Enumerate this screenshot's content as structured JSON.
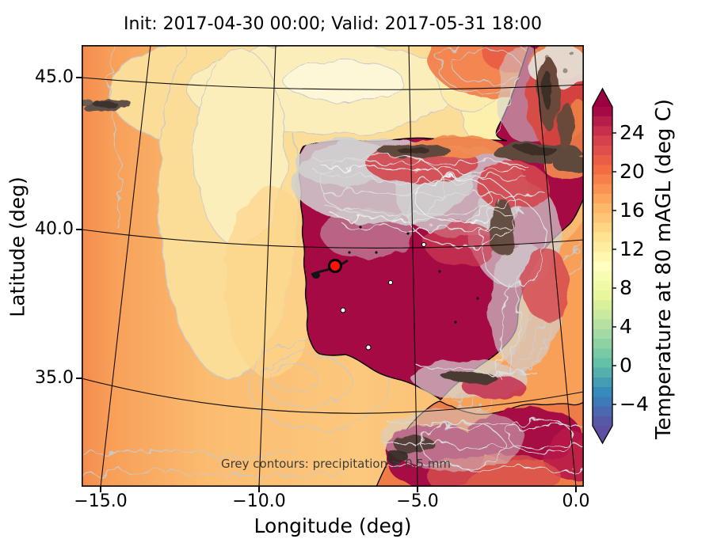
{
  "figure": {
    "title": "Init: 2017-04-30 00:00; Valid: 2017-05-31 18:00",
    "xlabel": "Longitude (deg)",
    "ylabel": "Latitude (deg)",
    "annotation": "Grey contours: precipitation ≥ 0.5 mm"
  },
  "axes": {
    "x_ticks": [
      "−15.0",
      "−10.0",
      "−5.0",
      "0.0"
    ],
    "y_ticks": [
      "45.0",
      "40.0",
      "35.0"
    ]
  },
  "colorbar": {
    "label": "Temperature at 80 mAGL (deg C)",
    "ticks": [
      "24",
      "20",
      "16",
      "12",
      "8",
      "4",
      "0",
      "−4"
    ],
    "range_top": 27,
    "range_bottom": -6,
    "band_step": 1,
    "stops_bottom_to_top": [
      "#5e4fa2",
      "#3288bd",
      "#66c2a5",
      "#abdda4",
      "#e6f598",
      "#ffffbf",
      "#fee08b",
      "#fdae61",
      "#f46d43",
      "#d53e4f",
      "#9e0142"
    ]
  },
  "colors": {
    "hot_land": "#a60a45",
    "ocean_orange": "#f9b267",
    "ocean_pale": "#fcefc0",
    "precip_grey": "#d2d2d2",
    "marker_red": "#fb1403",
    "annotation_grey": "#3d3d3d"
  },
  "marker": {
    "lon": -7.6,
    "lat": 38.9,
    "shape": "circle",
    "color": "#fb1403"
  },
  "chart_data": {
    "type": "heatmap",
    "subtype": "filled-contour-map",
    "title": "Init: 2017-04-30 00:00; Valid: 2017-05-31 18:00",
    "xlabel": "Longitude (deg)",
    "ylabel": "Latitude (deg)",
    "x_ticks": [
      -15.0,
      -10.0,
      -5.0,
      0.0
    ],
    "y_ticks": [
      45.0,
      40.0,
      35.0
    ],
    "xlim": [
      -15.6,
      0.3
    ],
    "ylim": [
      31.5,
      46.3
    ],
    "grid": true,
    "colorbar": {
      "label": "Temperature at 80 mAGL (deg C)",
      "units": "deg C",
      "ticks": [
        24,
        20,
        16,
        12,
        8,
        4,
        0,
        -4
      ],
      "range": [
        -6,
        27
      ],
      "colormap": "Spectral reversed (purple-blue-green-yellow-orange-red)",
      "extend": "both"
    },
    "overlays": [
      "Temperature >26 C (dark magenta) over interior Iberia, SE Spain coastally mottled, and inland North Africa",
      "Atlantic ocean 14-18 C (orange) with 10-13 C pale-yellow pools NW of Iberia and in Bay of Biscay",
      "Grey precipitation contours (>= 0.5 mm) over northern/eastern Spain, Pyrenees, France, Alboran area and Morocco",
      "Dark grey-brown cells of heaviest precipitation over Cantabrian range, Pyrenees, French uplands and Atlas",
      "Red circle site marker near lon -7.6, lat 38.9"
    ]
  }
}
